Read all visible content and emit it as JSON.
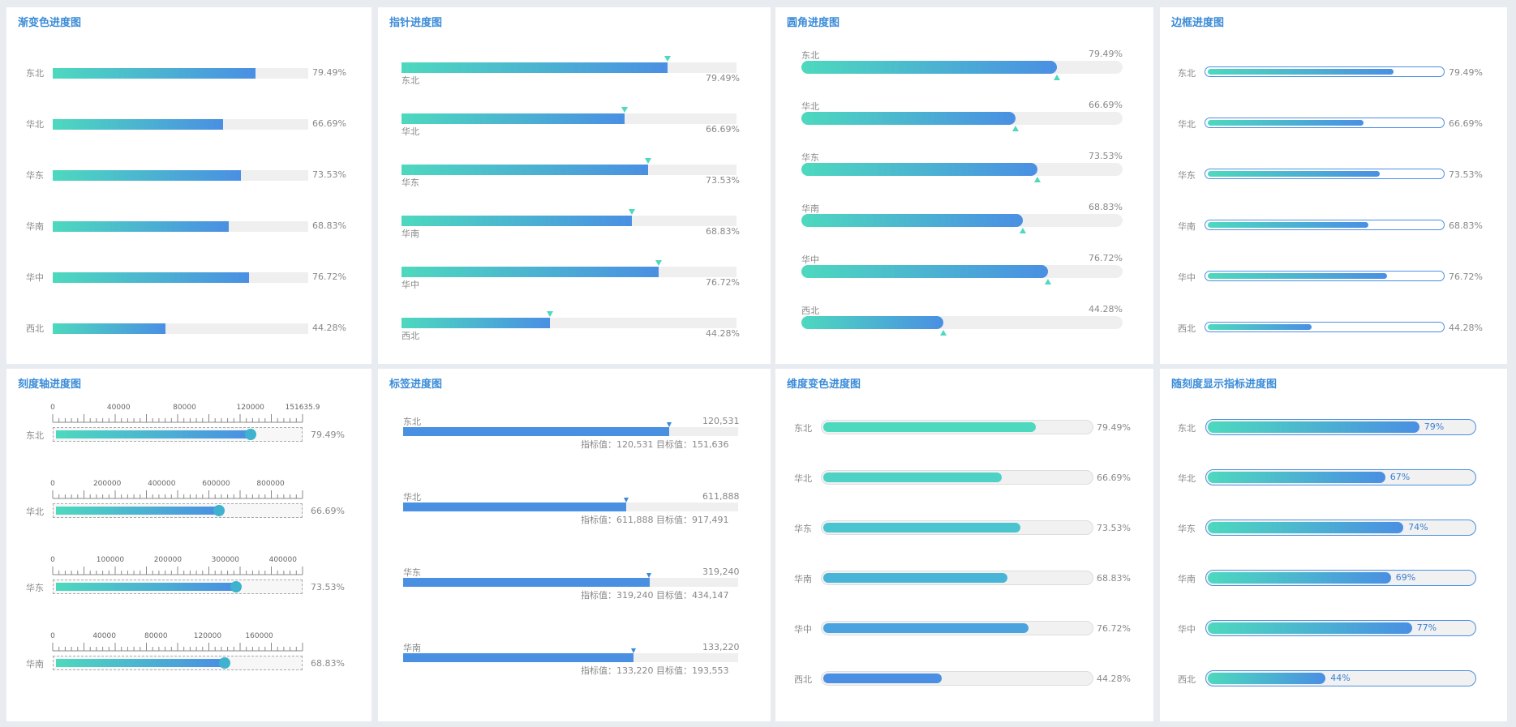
{
  "colors": {
    "grad_start": "#4dd9be",
    "grad_end": "#4a8fe3",
    "blue": "#4a90e2",
    "track": "#efefef",
    "title": "#3a8bd8"
  },
  "regions": [
    "东北",
    "华北",
    "华东",
    "华南",
    "华中",
    "西北"
  ],
  "percents": [
    "79.49%",
    "66.69%",
    "73.53%",
    "68.83%",
    "76.72%",
    "44.28%"
  ],
  "chart_data": [
    {
      "type": "bar",
      "title": "渐变色进度图",
      "categories": [
        "东北",
        "华北",
        "华东",
        "华南",
        "华中",
        "西北"
      ],
      "values": [
        79.49,
        66.69,
        73.53,
        68.83,
        76.72,
        44.28
      ],
      "ylim": [
        0,
        100
      ]
    },
    {
      "type": "bar",
      "title": "指针进度图",
      "categories": [
        "东北",
        "华北",
        "华东",
        "华南",
        "华中",
        "西北"
      ],
      "values": [
        79.49,
        66.69,
        73.53,
        68.83,
        76.72,
        44.28
      ],
      "ylim": [
        0,
        100
      ]
    },
    {
      "type": "bar",
      "title": "圆角进度图",
      "categories": [
        "东北",
        "华北",
        "华东",
        "华南",
        "华中",
        "西北"
      ],
      "values": [
        79.49,
        66.69,
        73.53,
        68.83,
        76.72,
        44.28
      ],
      "ylim": [
        0,
        100
      ]
    },
    {
      "type": "bar",
      "title": "边框进度图",
      "categories": [
        "东北",
        "华北",
        "华东",
        "华南",
        "华中",
        "西北"
      ],
      "values": [
        79.49,
        66.69,
        73.53,
        68.83,
        76.72,
        44.28
      ],
      "ylim": [
        0,
        100
      ]
    },
    {
      "type": "bar",
      "title": "刻度轴进度图",
      "categories": [
        "东北",
        "华北",
        "华东",
        "华南"
      ],
      "values": [
        79.49,
        66.69,
        73.53,
        68.83
      ],
      "axes": [
        {
          "max": 151635.9,
          "ticks": [
            "0",
            "40000",
            "80000",
            "120000",
            "151635.9"
          ],
          "tick_values": [
            0,
            40000,
            80000,
            120000,
            151635.9
          ]
        },
        {
          "max": 917491,
          "ticks": [
            "0",
            "200000",
            "400000",
            "600000",
            "800000"
          ],
          "tick_values": [
            0,
            200000,
            400000,
            600000,
            800000
          ]
        },
        {
          "max": 434147,
          "ticks": [
            "0",
            "100000",
            "200000",
            "300000",
            "400000"
          ],
          "tick_values": [
            0,
            100000,
            200000,
            300000,
            400000
          ]
        },
        {
          "max": 193553,
          "ticks": [
            "0",
            "40000",
            "80000",
            "120000",
            "160000"
          ],
          "tick_values": [
            0,
            40000,
            80000,
            120000,
            160000
          ]
        }
      ]
    },
    {
      "type": "bar",
      "title": "标签进度图",
      "categories": [
        "东北",
        "华北",
        "华东",
        "华南"
      ],
      "values": [
        120531,
        611888,
        319240,
        133220
      ],
      "targets": [
        151636,
        917491,
        434147,
        193553
      ],
      "value_labels": [
        "120,531",
        "611,888",
        "319,240",
        "133,220"
      ],
      "detail_labels": [
        "指标值：120,531  目标值：151,636",
        "指标值：611,888  目标值：917,491",
        "指标值：319,240  目标值：434,147",
        "指标值：133,220  目标值：193,553"
      ]
    },
    {
      "type": "bar",
      "title": "维度变色进度图",
      "categories": [
        "东北",
        "华北",
        "华东",
        "华南",
        "华中",
        "西北"
      ],
      "values": [
        79.49,
        66.69,
        73.53,
        68.83,
        76.72,
        44.28
      ],
      "ylim": [
        0,
        100
      ],
      "colors": [
        "#4dd9be",
        "#4fd2c6",
        "#4ac4cf",
        "#48b4d8",
        "#4aa3de",
        "#4a8fe3"
      ]
    },
    {
      "type": "bar",
      "title": "随刻度显示指标进度图",
      "categories": [
        "东北",
        "华北",
        "华东",
        "华南",
        "华中",
        "西北"
      ],
      "values": [
        79.49,
        66.69,
        73.53,
        68.83,
        76.72,
        44.28
      ],
      "ylim": [
        0,
        100
      ],
      "value_labels": [
        "79%",
        "67%",
        "74%",
        "69%",
        "77%",
        "44%"
      ]
    }
  ]
}
